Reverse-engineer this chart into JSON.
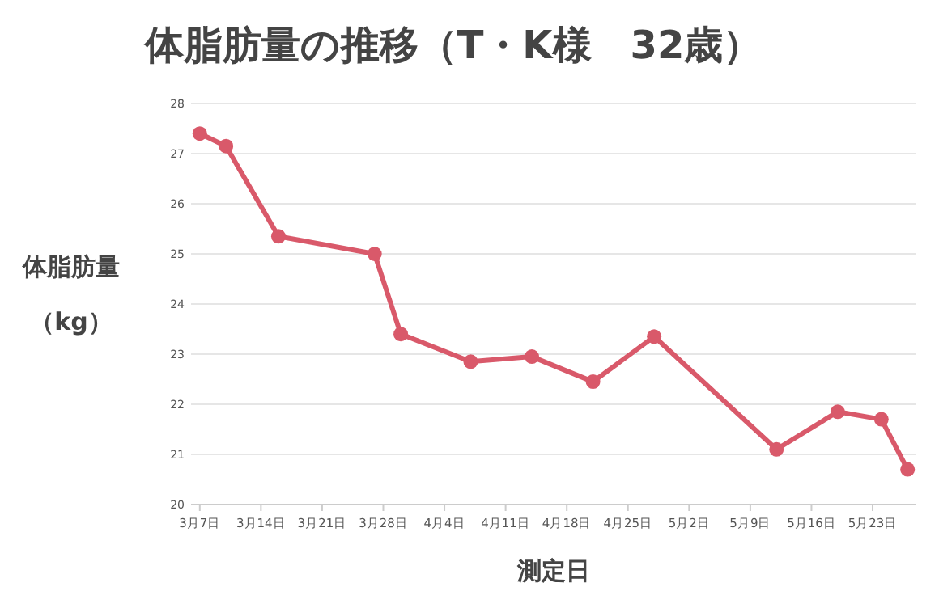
{
  "chart_data": {
    "type": "line",
    "title": "体脂肪量の推移（T・K様　32歳）",
    "xlabel": "測定日",
    "ylabel": "体脂肪量（kg）",
    "x": [
      "--03-07",
      "--03-10",
      "--03-16",
      "--03-27",
      "--03-30",
      "--04-07",
      "--04-14",
      "--04-21",
      "--04-28",
      "--05-12",
      "--05-19",
      "--05-24",
      "--05-27"
    ],
    "series": [
      {
        "color": "#d9596a",
        "values": [
          27.4,
          27.15,
          25.35,
          25.0,
          23.4,
          22.85,
          22.95,
          22.45,
          23.35,
          21.1,
          21.85,
          21.7,
          20.7
        ]
      }
    ],
    "xlim": [
      "--03-06",
      "--05-28"
    ],
    "xticks": [
      {
        "value": "--03-07",
        "label": "3月7日"
      },
      {
        "value": "--03-14",
        "label": "3月14日"
      },
      {
        "value": "--03-21",
        "label": "3月21日"
      },
      {
        "value": "--03-28",
        "label": "3月28日"
      },
      {
        "value": "--04-04",
        "label": "4月4日"
      },
      {
        "value": "--04-11",
        "label": "4月11日"
      },
      {
        "value": "--04-18",
        "label": "4月18日"
      },
      {
        "value": "--04-25",
        "label": "4月25日"
      },
      {
        "value": "--05-02",
        "label": "5月2日"
      },
      {
        "value": "--05-09",
        "label": "5月9日"
      },
      {
        "value": "--05-16",
        "label": "5月16日"
      },
      {
        "value": "--05-23",
        "label": "5月23日"
      }
    ],
    "ylim": [
      20,
      28
    ],
    "yticks": [
      20,
      21,
      22,
      23,
      24,
      25,
      26,
      27,
      28
    ],
    "grid": "y",
    "marker": "circle",
    "line_style": "solid"
  }
}
